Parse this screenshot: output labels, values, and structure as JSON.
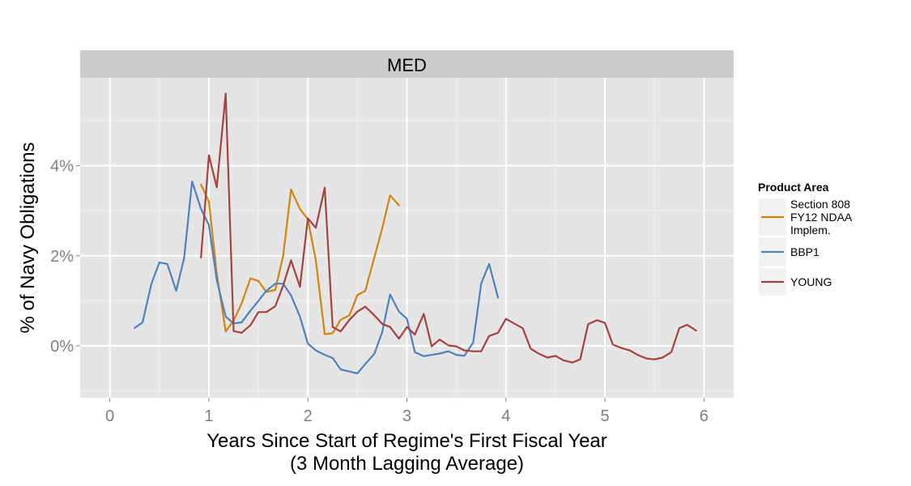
{
  "chart_data": {
    "type": "line",
    "facet_label": "MED",
    "xlabel_line1": "Years Since Start of Regime's First Fiscal Year",
    "xlabel_line2": "(3 Month Lagging Average)",
    "ylabel": "% of Navy Obligations",
    "xlim": [
      -0.3,
      6.3
    ],
    "ylim": [
      -1.15,
      5.95
    ],
    "x_ticks": [
      0,
      1,
      2,
      3,
      4,
      5,
      6
    ],
    "x_tick_labels": [
      "0",
      "1",
      "2",
      "3",
      "4",
      "5",
      "6"
    ],
    "y_ticks": [
      0,
      2,
      4
    ],
    "y_tick_labels": [
      "0%",
      "2%",
      "4%"
    ],
    "legend_title": "Product Area",
    "legend_position": "right",
    "grid": true,
    "series": [
      {
        "name_lines": [
          "Section 808",
          "FY12 NDAA",
          "Implem."
        ],
        "color": "#D3830F",
        "x": [
          0.92,
          1.0,
          1.08,
          1.17,
          1.25,
          1.33,
          1.42,
          1.5,
          1.58,
          1.67,
          1.75,
          1.83,
          1.92,
          2.0,
          2.08,
          2.17,
          2.25,
          2.33,
          2.42,
          2.5,
          2.58,
          2.67,
          2.75,
          2.83,
          2.92
        ],
        "y": [
          3.58,
          3.2,
          1.6,
          0.32,
          0.56,
          0.94,
          1.5,
          1.44,
          1.2,
          1.24,
          2.0,
          3.47,
          3.04,
          2.81,
          1.9,
          0.26,
          0.28,
          0.58,
          0.68,
          1.13,
          1.22,
          1.96,
          2.6,
          3.34,
          3.12
        ]
      },
      {
        "name_lines": [
          "BBP1"
        ],
        "color": "#4D82BD",
        "x": [
          0.25,
          0.33,
          0.42,
          0.5,
          0.58,
          0.67,
          0.75,
          0.83,
          0.92,
          1.0,
          1.08,
          1.17,
          1.25,
          1.33,
          1.42,
          1.5,
          1.58,
          1.67,
          1.75,
          1.83,
          1.92,
          2.0,
          2.08,
          2.17,
          2.25,
          2.33,
          2.42,
          2.5,
          2.58,
          2.67,
          2.75,
          2.83,
          2.92,
          3.0,
          3.08,
          3.17,
          3.25,
          3.33,
          3.42,
          3.5,
          3.58,
          3.67,
          3.75,
          3.83,
          3.92
        ],
        "y": [
          0.4,
          0.52,
          1.38,
          1.85,
          1.82,
          1.22,
          1.95,
          3.65,
          3.04,
          2.68,
          1.46,
          0.65,
          0.5,
          0.52,
          0.78,
          1.0,
          1.22,
          1.38,
          1.38,
          1.12,
          0.65,
          0.05,
          -0.1,
          -0.2,
          -0.27,
          -0.52,
          -0.57,
          -0.61,
          -0.4,
          -0.18,
          0.3,
          1.14,
          0.76,
          0.6,
          -0.14,
          -0.23,
          -0.2,
          -0.17,
          -0.12,
          -0.2,
          -0.22,
          0.08,
          1.38,
          1.82,
          1.07
        ]
      },
      {
        "name_lines": [
          "YOUNG"
        ],
        "color": "#A5413E",
        "x": [
          0.92,
          1.0,
          1.08,
          1.17,
          1.25,
          1.33,
          1.42,
          1.5,
          1.58,
          1.67,
          1.75,
          1.83,
          1.92,
          2.0,
          2.08,
          2.17,
          2.25,
          2.33,
          2.42,
          2.5,
          2.58,
          2.67,
          2.75,
          2.83,
          2.92,
          3.0,
          3.08,
          3.17,
          3.25,
          3.33,
          3.42,
          3.5,
          3.58,
          3.67,
          3.75,
          3.83,
          3.92,
          4.0,
          4.08,
          4.17,
          4.25,
          4.33,
          4.42,
          4.5,
          4.58,
          4.67,
          4.75,
          4.83,
          4.92,
          5.0,
          5.08,
          5.17,
          5.25,
          5.33,
          5.42,
          5.5,
          5.58,
          5.67,
          5.75,
          5.83,
          5.92
        ],
        "y": [
          1.96,
          4.23,
          3.52,
          5.6,
          0.33,
          0.29,
          0.46,
          0.75,
          0.75,
          0.88,
          1.34,
          1.9,
          1.31,
          2.83,
          2.62,
          3.51,
          0.42,
          0.32,
          0.58,
          0.76,
          0.87,
          0.68,
          0.49,
          0.42,
          0.16,
          0.42,
          0.25,
          0.71,
          -0.01,
          0.14,
          0.01,
          -0.01,
          -0.1,
          -0.12,
          -0.12,
          0.22,
          0.29,
          0.6,
          0.5,
          0.39,
          -0.06,
          -0.17,
          -0.26,
          -0.22,
          -0.32,
          -0.37,
          -0.3,
          0.48,
          0.57,
          0.51,
          0.03,
          -0.05,
          -0.1,
          -0.2,
          -0.28,
          -0.3,
          -0.26,
          -0.14,
          0.39,
          0.47,
          0.34
        ]
      }
    ]
  }
}
